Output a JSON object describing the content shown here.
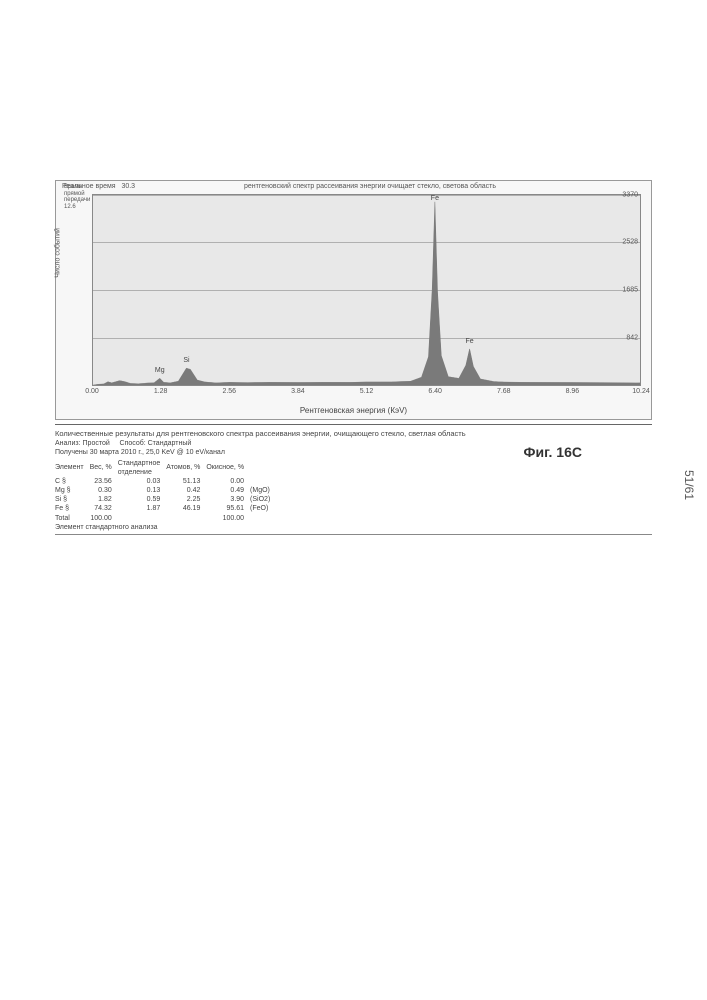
{
  "page_number": "51/61",
  "figure_label": "Фиг. 16C",
  "header": {
    "left_label": "Реальное время",
    "left_value": "30.3",
    "title": "рентгеновский спектр рассеивания энергии очищает стекло, светова область"
  },
  "left_meta": {
    "line1": "Время прямой\nпередачи",
    "value": "12.6"
  },
  "chart": {
    "type": "area-spectrum",
    "x_axis_label": "Рентгеновская энергия (КэV)",
    "y_axis_label": "Число событий",
    "background_color": "#e8e8e8",
    "grid_color": "#b0b0b0",
    "plot_border_color": "#888888",
    "xlim": [
      0.0,
      10.24
    ],
    "x_ticks": [
      0.0,
      1.28,
      2.56,
      3.84,
      5.12,
      6.4,
      7.68,
      8.96,
      10.24
    ],
    "ylim": [
      0,
      3370
    ],
    "y_ticks": [
      842,
      1685,
      2528,
      3370
    ],
    "series_color": "#7a7a7a",
    "peak_labels": [
      {
        "x": 1.25,
        "label": "Mg"
      },
      {
        "x": 1.75,
        "label": "Si"
      },
      {
        "x": 6.4,
        "label": "Fe"
      },
      {
        "x": 7.05,
        "label": "Fe"
      }
    ],
    "spectrum": [
      [
        0.0,
        0
      ],
      [
        0.1,
        15
      ],
      [
        0.2,
        20
      ],
      [
        0.28,
        60
      ],
      [
        0.35,
        40
      ],
      [
        0.5,
        80
      ],
      [
        0.6,
        60
      ],
      [
        0.7,
        30
      ],
      [
        0.85,
        25
      ],
      [
        1.0,
        35
      ],
      [
        1.15,
        45
      ],
      [
        1.25,
        120
      ],
      [
        1.32,
        50
      ],
      [
        1.45,
        40
      ],
      [
        1.6,
        70
      ],
      [
        1.75,
        300
      ],
      [
        1.82,
        280
      ],
      [
        1.95,
        90
      ],
      [
        2.1,
        55
      ],
      [
        2.3,
        40
      ],
      [
        2.56,
        50
      ],
      [
        2.9,
        45
      ],
      [
        3.3,
        50
      ],
      [
        3.84,
        48
      ],
      [
        4.3,
        52
      ],
      [
        4.8,
        50
      ],
      [
        5.12,
        55
      ],
      [
        5.6,
        58
      ],
      [
        5.95,
        70
      ],
      [
        6.15,
        140
      ],
      [
        6.28,
        500
      ],
      [
        6.35,
        1700
      ],
      [
        6.4,
        3250
      ],
      [
        6.45,
        1650
      ],
      [
        6.52,
        520
      ],
      [
        6.65,
        150
      ],
      [
        6.85,
        120
      ],
      [
        6.98,
        350
      ],
      [
        7.05,
        640
      ],
      [
        7.12,
        330
      ],
      [
        7.25,
        110
      ],
      [
        7.5,
        65
      ],
      [
        7.68,
        55
      ],
      [
        8.2,
        50
      ],
      [
        8.96,
        48
      ],
      [
        9.5,
        45
      ],
      [
        10.0,
        42
      ],
      [
        10.24,
        40
      ]
    ]
  },
  "results": {
    "title": "Количественные результаты для рентгеновского спектра рассеивания энергии, очищающего стекло, светлая область",
    "line2a": "Анализ: Простой",
    "line2b": "Способ: Стандартный",
    "line3": "Получены 30 марта 2010 г., 25,0 KeV @ 10 eV/канал",
    "columns": [
      "Элемент",
      "Вес, %",
      "Стандартное\nотделение",
      "Атомов, %",
      "Окисное, %",
      ""
    ],
    "rows": [
      [
        "C §",
        "23.56",
        "0.03",
        "51.13",
        "0.00",
        ""
      ],
      [
        "Mg §",
        "0.30",
        "0.13",
        "0.42",
        "0.49",
        "(MgO)"
      ],
      [
        "Si §",
        "1.82",
        "0.59",
        "2.25",
        "3.90",
        "(SiO2)"
      ],
      [
        "Fe §",
        "74.32",
        "1.87",
        "46.19",
        "95.61",
        "(FeO)"
      ],
      [
        "Total",
        "100.00",
        "",
        "",
        "100.00",
        ""
      ]
    ],
    "footer": "Элемент стандартного анализа"
  }
}
